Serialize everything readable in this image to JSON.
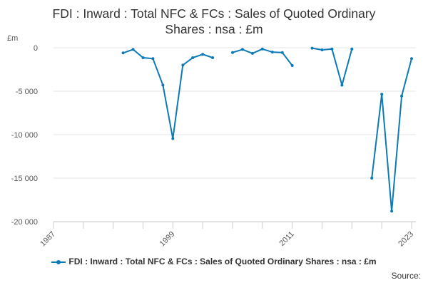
{
  "chart_data": {
    "type": "line",
    "title_lines": [
      "FDI : Inward : Total NFC & FCs : Sales of Quoted Ordinary",
      "Shares : nsa : £m"
    ],
    "unit_label": "£m",
    "source_label": "Source:",
    "y_ticks": [
      0,
      -5000,
      -10000,
      -15000,
      -20000
    ],
    "y_tick_labels": [
      "0",
      "-5 000",
      "-10 000",
      "-15 000",
      "-20 000"
    ],
    "x_tick_labels": [
      "1987",
      "1999",
      "2011",
      "2023"
    ],
    "x_ticks": [
      1987,
      1999,
      2011,
      2023
    ],
    "xlim": [
      1987,
      2023
    ],
    "ylim": [
      -20000,
      0
    ],
    "grid": "horizontal",
    "legend_position": "bottom",
    "series": [
      {
        "name": "FDI : Inward : Total NFC & FCs : Sales of Quoted Ordinary Shares : nsa : £m",
        "color": "#0d7ab7",
        "segments": [
          [
            [
              1994,
              -600
            ],
            [
              1995,
              -200
            ],
            [
              1996,
              -1150
            ],
            [
              1997,
              -1250
            ],
            [
              1998,
              -4300
            ],
            [
              1999,
              -10450
            ],
            [
              2000,
              -2000
            ],
            [
              2001,
              -1150
            ],
            [
              2002,
              -750
            ],
            [
              2003,
              -1150
            ]
          ],
          [
            [
              2005,
              -550
            ],
            [
              2006,
              -200
            ],
            [
              2007,
              -650
            ],
            [
              2008,
              -150
            ],
            [
              2009,
              -500
            ],
            [
              2010,
              -550
            ],
            [
              2011,
              -2050
            ]
          ],
          [
            [
              2013,
              -50
            ],
            [
              2014,
              -250
            ],
            [
              2015,
              -150
            ],
            [
              2016,
              -4300
            ],
            [
              2017,
              -150
            ]
          ],
          [
            [
              2019,
              -15000
            ],
            [
              2020,
              -5350
            ],
            [
              2021,
              -18800
            ],
            [
              2022,
              -5550
            ],
            [
              2023,
              -1250
            ]
          ]
        ]
      }
    ]
  }
}
